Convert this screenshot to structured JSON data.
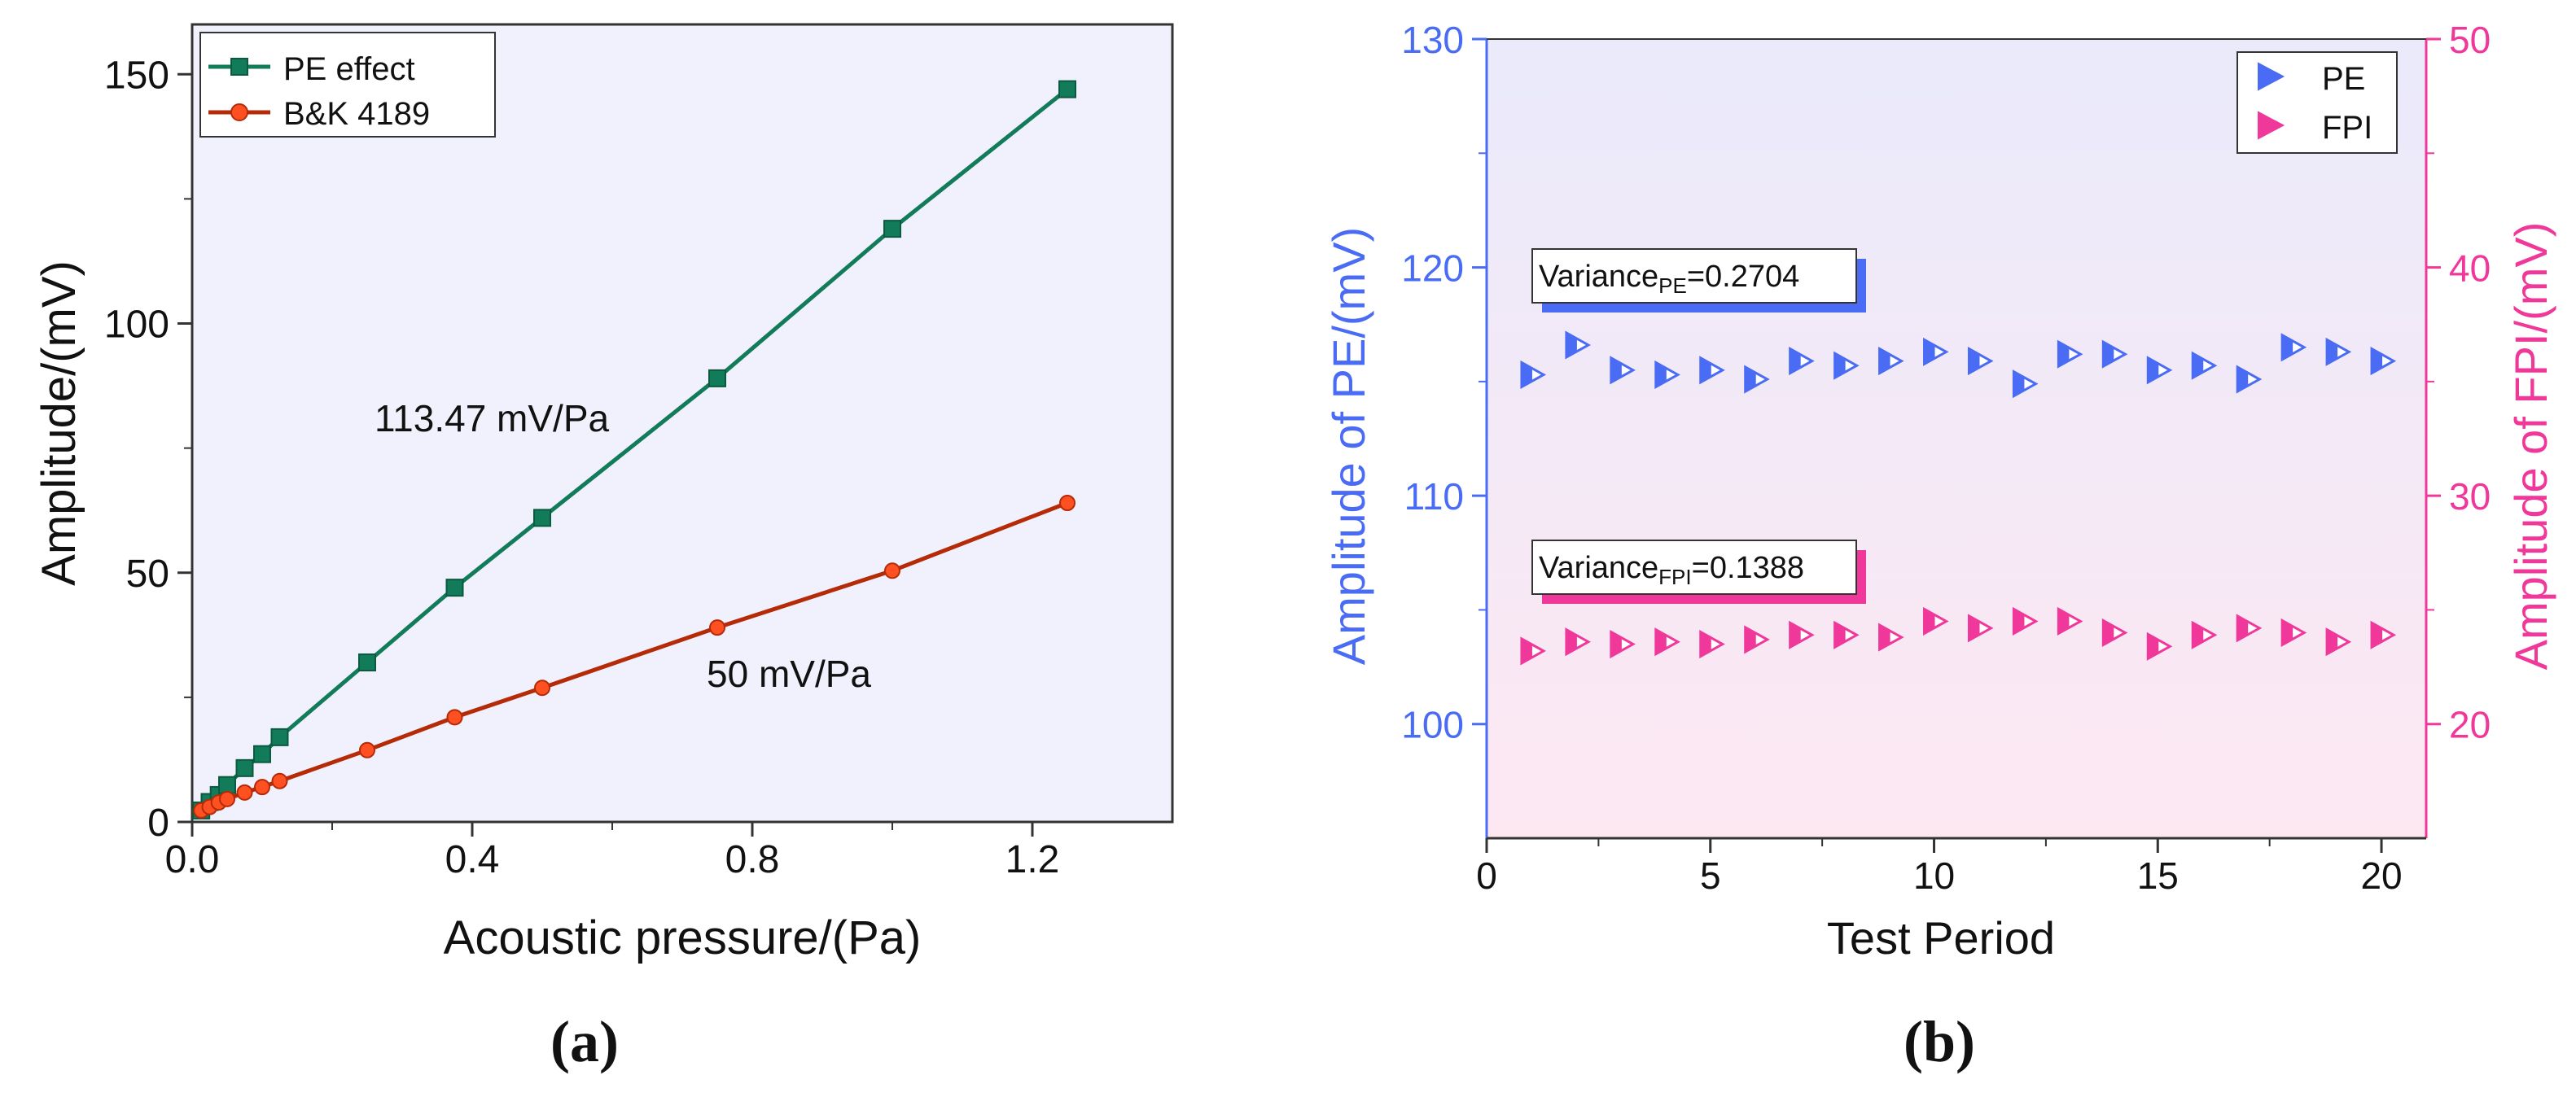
{
  "chart_data": [
    {
      "type": "line",
      "panel_label": "(a)",
      "xlabel": "Acoustic pressure/(Pa)",
      "ylabel": "Amplitude/(mV)",
      "xlim": [
        0,
        1.4
      ],
      "ylim": [
        0,
        160
      ],
      "xticks": [
        "0.0",
        "0.4",
        "0.8",
        "1.2"
      ],
      "yticks": [
        "0",
        "50",
        "100",
        "150"
      ],
      "legend_position": "top-left",
      "grid": false,
      "colors": {
        "pe": "#127b5a",
        "bk": "#b52a07",
        "bk_marker": "#ff5022",
        "background": "#f1f1fd"
      },
      "series": [
        {
          "name": "PE effect",
          "marker": "square",
          "x": [
            0.013,
            0.025,
            0.038,
            0.05,
            0.075,
            0.1,
            0.125,
            0.25,
            0.375,
            0.5,
            0.75,
            1.0,
            1.25
          ],
          "y": [
            2.3,
            4.0,
            5.4,
            7.4,
            10.8,
            13.6,
            17.0,
            32.0,
            47.0,
            61.0,
            89.0,
            119.0,
            147.0
          ]
        },
        {
          "name": "B&K 4189",
          "marker": "circle",
          "x": [
            0.013,
            0.025,
            0.038,
            0.05,
            0.075,
            0.1,
            0.125,
            0.25,
            0.375,
            0.5,
            0.75,
            1.0,
            1.25
          ],
          "y": [
            2.3,
            3.0,
            3.9,
            4.6,
            5.9,
            7.0,
            8.2,
            14.4,
            21.0,
            26.9,
            39.0,
            50.4,
            64.0
          ]
        }
      ],
      "annotations": [
        {
          "text": "113.47 mV/Pa",
          "x": 0.35,
          "y": 80
        },
        {
          "text": "50 mV/Pa",
          "x": 0.57,
          "y": 29
        }
      ]
    },
    {
      "type": "scatter",
      "panel_label": "(b)",
      "xlabel": "Test Period",
      "ylabel": "Amplitude of PE/(mV)",
      "ylabel_right": "Amplitude of FPI/(mV)",
      "xlim": [
        0,
        21
      ],
      "ylim": [
        95,
        130
      ],
      "ylim_right": [
        15,
        50
      ],
      "xticks": [
        "0",
        "5",
        "10",
        "15",
        "20"
      ],
      "yticks": [
        "100",
        "110",
        "120",
        "130"
      ],
      "yticks_right": [
        "20",
        "30",
        "40",
        "50"
      ],
      "legend_position": "top-right",
      "grid": false,
      "colors": {
        "pe": "#4a6cf4",
        "fpi": "#f0389a",
        "bg_top": "#eaeafb",
        "bg_bottom": "#fde8f2"
      },
      "series": [
        {
          "name": "PE",
          "axis": "left",
          "marker": "right-triangle",
          "x": [
            1,
            2,
            3,
            4,
            5,
            6,
            7,
            8,
            9,
            10,
            11,
            12,
            13,
            14,
            15,
            16,
            17,
            18,
            19,
            20
          ],
          "y": [
            115.3,
            116.6,
            115.5,
            115.3,
            115.5,
            115.1,
            115.9,
            115.7,
            115.9,
            116.3,
            115.9,
            114.9,
            116.2,
            116.2,
            115.5,
            115.7,
            115.1,
            116.5,
            116.3,
            115.9
          ]
        },
        {
          "name": "FPI",
          "axis": "right",
          "marker": "right-triangle",
          "x": [
            1,
            2,
            3,
            4,
            5,
            6,
            7,
            8,
            9,
            10,
            11,
            12,
            13,
            14,
            15,
            16,
            17,
            18,
            19,
            20
          ],
          "y": [
            23.2,
            23.6,
            23.5,
            23.6,
            23.5,
            23.7,
            23.9,
            23.9,
            23.8,
            24.5,
            24.2,
            24.5,
            24.5,
            24.0,
            23.4,
            23.9,
            24.2,
            24.0,
            23.6,
            23.9
          ]
        }
      ],
      "annotations": [
        {
          "text_main": "Variance",
          "text_sub": "PE",
          "text_value": "=0.2704",
          "color": "#4a6cf4"
        },
        {
          "text_main": "Variance",
          "text_sub": "FPI",
          "text_value": "=0.1388",
          "color": "#f0389a"
        }
      ]
    }
  ]
}
